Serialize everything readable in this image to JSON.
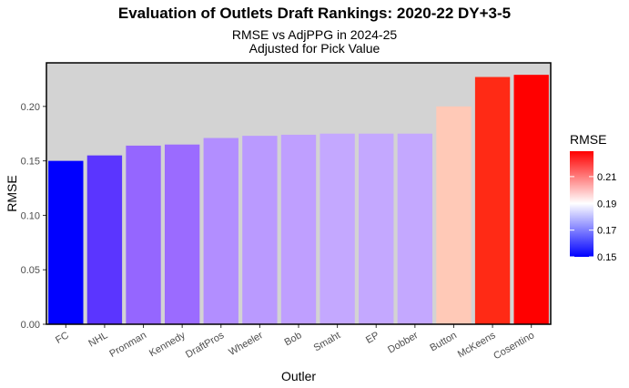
{
  "chart_data": {
    "type": "bar",
    "title": "Evaluation of Outlets Draft Rankings: 2020-22 DY+3-5",
    "subtitle": [
      "RMSE vs AdjPPG in 2024-25",
      "Adjusted for Pick Value"
    ],
    "xlabel": "Outler",
    "ylabel": "RMSE",
    "categories": [
      "FC",
      "NHL",
      "Pronman",
      "Kennedy",
      "DraftPros",
      "Wheeler",
      "Bob",
      "Smaht",
      "EP",
      "Dobber",
      "Button",
      "McKeens",
      "Cosentino"
    ],
    "values": [
      0.15,
      0.155,
      0.164,
      0.165,
      0.171,
      0.173,
      0.174,
      0.175,
      0.175,
      0.175,
      0.2,
      0.227,
      0.229
    ],
    "ylim": [
      0,
      0.24
    ],
    "yticks": [
      "0.00",
      "0.05",
      "0.10",
      "0.15",
      "0.20"
    ],
    "grid": false,
    "legend": {
      "title": "RMSE",
      "position": "right",
      "labels": [
        "0.21",
        "0.19",
        "0.17",
        "0.15"
      ],
      "colors": {
        "low": "#0000ff",
        "mid": "#ffffff",
        "high": "#ff0000"
      },
      "scale_min": 0.15,
      "scale_mid": 0.19,
      "scale_max": 0.229
    },
    "panel_background": "#d3d3d3",
    "bar_colors": [
      "#0000ff",
      "#5b35ff",
      "#9566ff",
      "#9b6bff",
      "#b28eff",
      "#ba9aff",
      "#bf9fff",
      "#c4a8ff",
      "#c4a8ff",
      "#c4a8ff",
      "#ffc9b7",
      "#ff2a15",
      "#ff0000"
    ]
  }
}
